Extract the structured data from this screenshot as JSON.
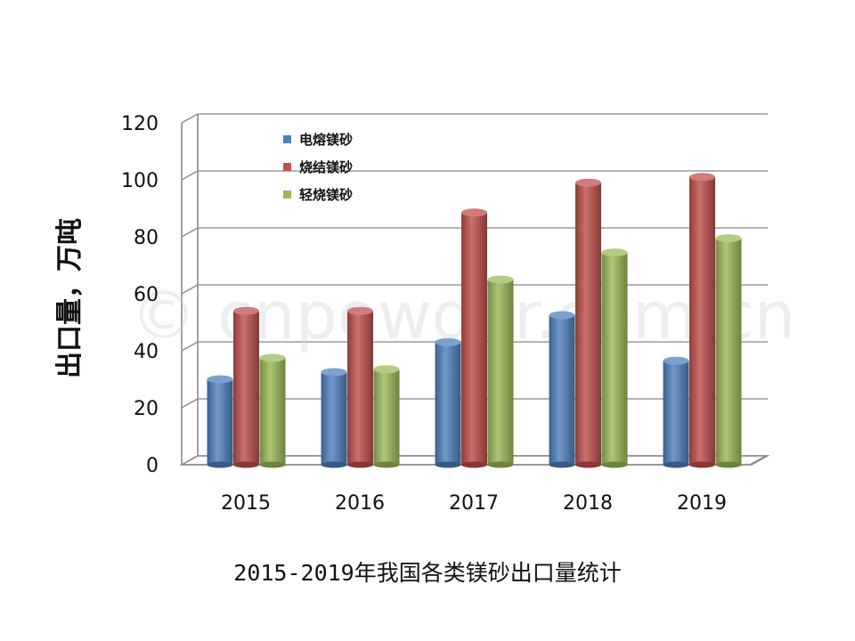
{
  "chart_data": {
    "type": "bar",
    "categories": [
      "2015",
      "2016",
      "2017",
      "2018",
      "2019"
    ],
    "series": [
      {
        "name": "电熔镁砂",
        "values": [
          30,
          32.5,
          43,
          52.5,
          36.5
        ],
        "color": "#4f81bd"
      },
      {
        "name": "烧结镁砂",
        "values": [
          54,
          54,
          88.5,
          99,
          101
        ],
        "color": "#c0504d"
      },
      {
        "name": "轻烧镁砂",
        "values": [
          37.5,
          33.5,
          65,
          74.5,
          79.5
        ],
        "color": "#9bbb59"
      }
    ],
    "yticks": [
      "0",
      "20",
      "40",
      "60",
      "80",
      "100",
      "120"
    ],
    "ylim": [
      0,
      120
    ],
    "ylabel": "出口量，万吨",
    "xlabel": "",
    "grid": true,
    "legend_position": "top-left"
  },
  "watermark": "© cnpowder.com.cn",
  "caption": "2015-2019年我国各类镁砂出口量统计"
}
